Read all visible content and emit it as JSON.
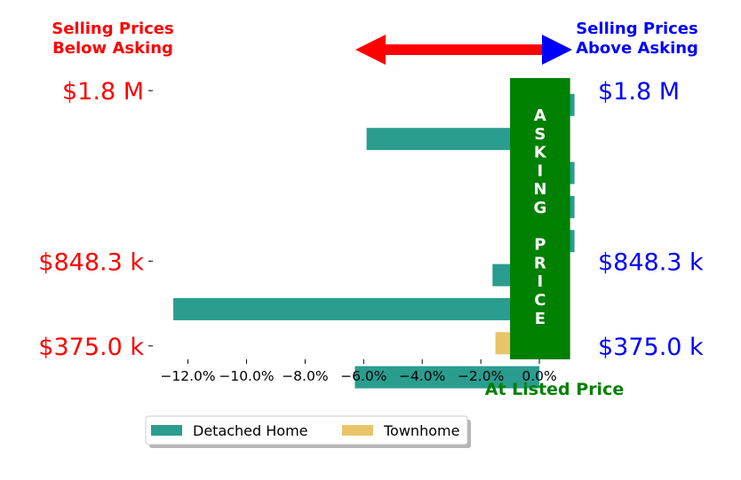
{
  "chart_data": {
    "type": "bar",
    "orientation": "horizontal",
    "xlabel": "At Listed Price",
    "xlim": [
      -13.2,
      1.0
    ],
    "xticks": [
      -12.0,
      -10.0,
      -8.0,
      -6.0,
      -4.0,
      -2.0,
      0.0
    ],
    "xtick_labels": [
      "−12.0%",
      "−10.0%",
      "−8.0%",
      "−6.0%",
      "−4.0%",
      "−2.0%",
      "0.0%"
    ],
    "ylim": [
      300000,
      1870000
    ],
    "price_ticks": [
      {
        "value": 1800000,
        "label": "$1.8 M"
      },
      {
        "value": 848300,
        "label": "$848.3 k"
      },
      {
        "value": 375000,
        "label": "$375.0 k"
      }
    ],
    "bars": [
      {
        "series": "Detached Home",
        "price": 1720000,
        "value": 1.2
      },
      {
        "series": "Detached Home",
        "price": 1530000,
        "value": -5.9
      },
      {
        "series": "Detached Home",
        "price": 1340000,
        "value": 1.2
      },
      {
        "series": "Detached Home",
        "price": 1150000,
        "value": 1.2
      },
      {
        "series": "Detached Home",
        "price": 960000,
        "value": 1.2
      },
      {
        "series": "Detached Home",
        "price": 770000,
        "value": -1.6
      },
      {
        "series": "Detached Home",
        "price": 580000,
        "value": -12.5
      },
      {
        "series": "Townhome",
        "price": 390000,
        "value": -1.5
      },
      {
        "series": "Detached Home",
        "price": 200000,
        "value": -6.3
      }
    ],
    "series": [
      {
        "name": "Detached Home",
        "color": "#2a9d8f"
      },
      {
        "name": "Townhome",
        "color": "#e9c46a"
      }
    ],
    "asking_band": {
      "letters": [
        "A",
        "S",
        "K",
        "I",
        "N",
        "G",
        " ",
        "P",
        "R",
        "I",
        "C",
        "E"
      ],
      "color": "#008000"
    },
    "legend_position": "bottom-left"
  },
  "header_left": [
    "Selling Prices",
    "Below Asking"
  ],
  "header_right": [
    "Selling Prices",
    "Above Asking"
  ],
  "colors": {
    "below": "#ff0000",
    "above": "#0000ff",
    "listed": "#008000"
  }
}
